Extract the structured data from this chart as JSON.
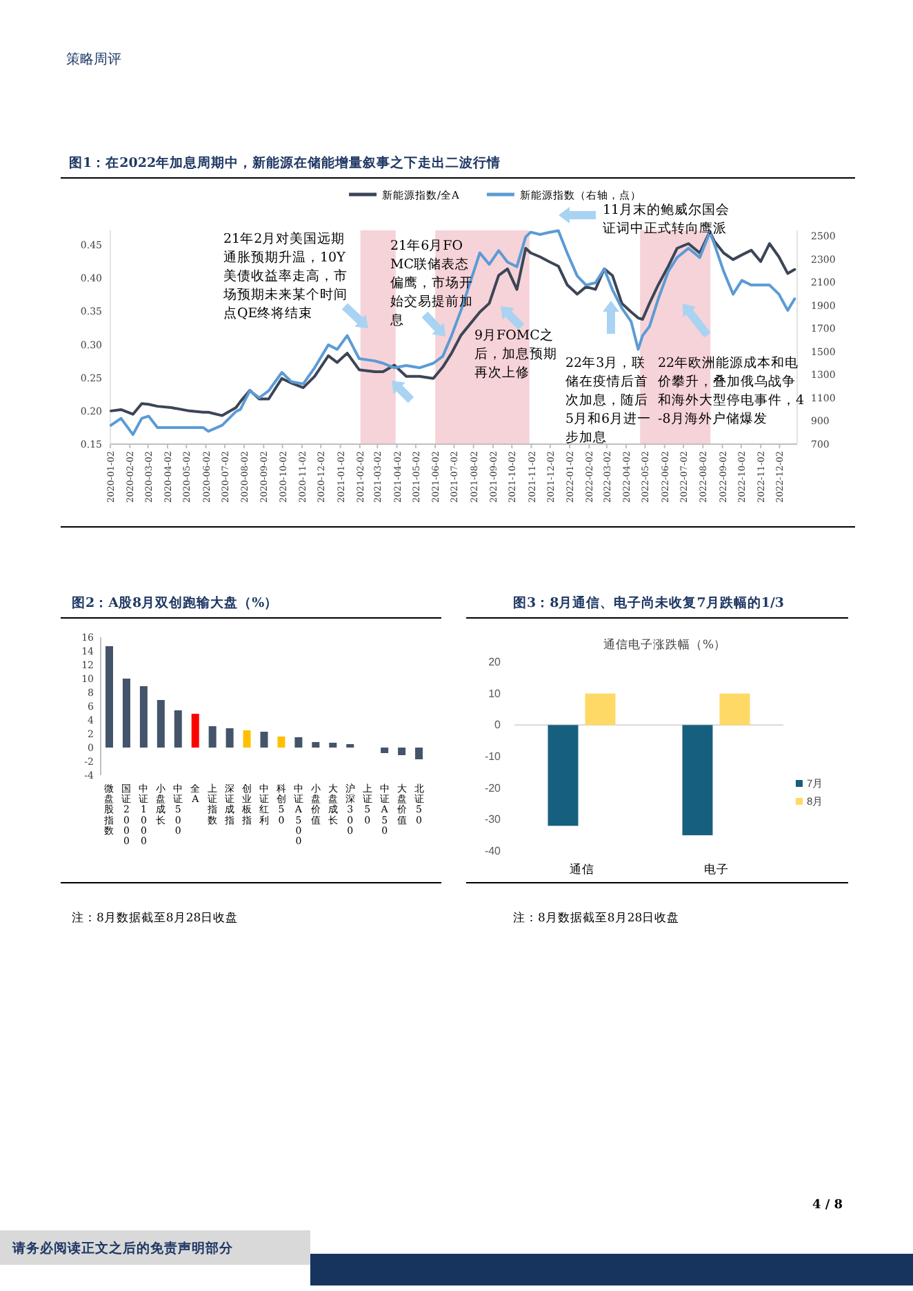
{
  "chart_data": [
    {
      "type": "line",
      "title": "图1：在2022年加息周期中，新能源在储能增量叙事之下走出二波行情",
      "x": [
        "2020-01-03",
        "2020-01-19",
        "2020-02-07",
        "2020-02-21",
        "2020-03-03",
        "2020-03-17",
        "2020-04-08",
        "2020-05-07",
        "2020-05-29",
        "2020-06-06",
        "2020-06-28",
        "2020-07-20",
        "2020-07-27",
        "2020-08-11",
        "2020-08-26",
        "2020-09-10",
        "2020-10-01",
        "2020-10-16",
        "2020-11-04",
        "2020-11-22",
        "2020-12-14",
        "2020-12-28",
        "2021-01-13",
        "2021-02-01",
        "2021-02-26",
        "2021-03-11",
        "2021-03-29",
        "2021-04-17",
        "2021-05-08",
        "2021-05-30",
        "2021-06-14",
        "2021-06-28",
        "2021-07-13",
        "2021-08-12",
        "2021-08-27",
        "2021-09-11",
        "2021-09-25",
        "2021-10-10",
        "2021-10-24",
        "2021-11-01",
        "2021-11-16",
        "2021-11-30",
        "2021-12-15",
        "2021-12-29",
        "2022-01-14",
        "2022-01-28",
        "2022-02-12",
        "2022-02-26",
        "2022-03-11",
        "2022-03-26",
        "2022-04-10",
        "2022-04-21",
        "2022-04-28",
        "2022-05-09",
        "2022-05-23",
        "2022-06-08",
        "2022-06-22",
        "2022-07-10",
        "2022-07-28",
        "2022-08-13",
        "2022-08-20",
        "2022-09-04",
        "2022-09-19",
        "2022-10-03",
        "2022-10-18",
        "2022-11-02",
        "2022-11-16",
        "2022-12-01",
        "2022-12-15",
        "2022-12-26"
      ],
      "series": [
        {
          "name": "新能源指数/全A",
          "color": "#3c4556",
          "values": [
            0.2,
            0.202,
            0.195,
            0.211,
            0.21,
            0.207,
            0.205,
            0.2,
            0.198,
            0.198,
            0.193,
            0.205,
            0.214,
            0.231,
            0.218,
            0.218,
            0.249,
            0.242,
            0.235,
            0.252,
            0.283,
            0.273,
            0.287,
            0.262,
            0.259,
            0.259,
            0.269,
            0.252,
            0.252,
            0.249,
            0.266,
            0.287,
            0.314,
            0.349,
            0.362,
            0.404,
            0.414,
            0.383,
            0.445,
            0.438,
            0.432,
            0.425,
            0.418,
            0.39,
            0.376,
            0.387,
            0.383,
            0.414,
            0.404,
            0.362,
            0.349,
            0.34,
            0.338,
            0.362,
            0.39,
            0.418,
            0.445,
            0.452,
            0.438,
            0.47,
            0.456,
            0.438,
            0.428,
            0.435,
            0.442,
            0.425,
            0.452,
            0.432,
            0.407,
            0.413
          ]
        },
        {
          "name": "新能源指数（右轴，点）",
          "color": "#5b9bd5",
          "axis": "y2",
          "values": [
            863,
            923,
            783,
            923,
            942,
            843,
            843,
            843,
            843,
            811,
            863,
            982,
            1000,
            1161,
            1101,
            1161,
            1320,
            1240,
            1221,
            1360,
            1558,
            1519,
            1638,
            1439,
            1419,
            1399,
            1360,
            1380,
            1360,
            1399,
            1459,
            1638,
            1856,
            2353,
            2254,
            2373,
            2274,
            2234,
            2492,
            2532,
            2512,
            2530,
            2545,
            2353,
            2154,
            2075,
            2095,
            2214,
            2035,
            1876,
            1757,
            1519,
            1638,
            1717,
            1956,
            2194,
            2313,
            2393,
            2313,
            2532,
            2433,
            2194,
            1996,
            2115,
            2075,
            2075,
            2075,
            1996,
            1856,
            1956
          ]
        }
      ],
      "xlim": [
        "2020-01-02",
        "2022-12-30"
      ],
      "xticks": [
        "2020-01-02",
        "2020-02-02",
        "2020-03-02",
        "2020-04-02",
        "2020-05-02",
        "2020-06-02",
        "2020-07-02",
        "2020-08-02",
        "2020-09-02",
        "2020-10-02",
        "2020-11-02",
        "2020-12-02",
        "2021-01-02",
        "2021-02-02",
        "2021-03-02",
        "2021-04-02",
        "2021-05-02",
        "2021-06-02",
        "2021-07-02",
        "2021-08-02",
        "2021-09-02",
        "2021-10-02",
        "2021-11-02",
        "2021-12-02",
        "2022-01-02",
        "2022-02-02",
        "2022-03-02",
        "2022-04-02",
        "2022-05-02",
        "2022-06-02",
        "2022-07-02",
        "2022-08-02",
        "2022-09-02",
        "2022-10-02",
        "2022-11-02",
        "2022-12-02"
      ],
      "ylim": [
        0.15,
        0.472
      ],
      "yticks": [
        {
          "value": 0.15,
          "label": "0.15"
        },
        {
          "value": 0.2,
          "label": "0.20"
        },
        {
          "value": 0.25,
          "label": "0.25"
        },
        {
          "value": 0.3,
          "label": "0.30"
        },
        {
          "value": 0.35,
          "label": "0.35"
        },
        {
          "value": 0.4,
          "label": "0.40"
        },
        {
          "value": 0.45,
          "label": "0.45"
        }
      ],
      "y2lim": [
        700,
        2548
      ],
      "y2ticks": [
        700,
        900,
        1100,
        1300,
        1500,
        1700,
        1900,
        2100,
        2300,
        2500
      ],
      "bands": [
        {
          "axis": "x",
          "from": "2021-02-03",
          "to": "2021-03-31",
          "color": "#f6d3d8"
        },
        {
          "axis": "x",
          "from": "2021-06-02",
          "to": "2021-10-30",
          "color": "#f6d3d8"
        },
        {
          "axis": "x",
          "from": "2022-04-24",
          "to": "2022-08-14",
          "color": "#f6d3d8"
        }
      ],
      "legend": "top",
      "annotations": [
        "21年2月对美国远期通胀预期升温，10Y美债收益率走高，市场预期未来某个时间点QE终将结束",
        "21年6月FOMC联储表态偏鹰，市场开始交易提前加息",
        "9月FOMC之后，加息预期再次上修",
        "11月末的鲍威尔国会证词中正式转向鹰派",
        "22年3月，联储在疫情后首次加息，随后5月和6月进一步加息",
        "22年欧洲能源成本和电价攀升，叠加俄乌战争和海外大型停电事件，4-8月海外户储爆发",
        "策略周评",
        "请务必阅读正文之后的免责声明部分",
        "4 / 8"
      ]
    },
    {
      "type": "bar",
      "title": "图2：A股8月双创跑输大盘（%）",
      "categories": [
        "微盘股指数",
        "国证2000",
        "中证1000",
        "小盘成长",
        "中证500",
        "全A",
        "上证指数",
        "深证成指",
        "创业板指",
        "中证红利",
        "科创50",
        "中证A500",
        "小盘价值",
        "大盘成长",
        "沪深300",
        "上证50",
        "中证A50",
        "大盘价值",
        "北证50"
      ],
      "values": [
        14.7,
        10.0,
        8.9,
        6.9,
        5.4,
        4.9,
        3.1,
        2.8,
        2.5,
        2.3,
        1.6,
        1.5,
        0.8,
        0.7,
        0.5,
        0,
        -0.8,
        -1.1,
        -1.7
      ],
      "colors": [
        "#44546a",
        "#44546a",
        "#44546a",
        "#44546a",
        "#44546a",
        "#ff0000",
        "#44546a",
        "#44546a",
        "#ffc000",
        "#44546a",
        "#ffc000",
        "#44546a",
        "#44546a",
        "#44546a",
        "#44546a",
        "#44546a",
        "#44546a",
        "#44546a",
        "#44546a"
      ],
      "ylim": [
        -4,
        16
      ],
      "yticks": [
        -4,
        -2,
        0,
        2,
        4,
        6,
        8,
        10,
        12,
        14,
        16
      ],
      "annotations": [
        "注：8月数据截至8月28日收盘"
      ]
    },
    {
      "type": "bar",
      "title": "图3：8月通信、电子尚未收复7月跌幅的1/3",
      "subtitle": "通信电子涨跌幅（%）",
      "categories": [
        "通信",
        "电子"
      ],
      "series": [
        {
          "name": "7月",
          "color": "#175f7e",
          "values": [
            -32,
            -35
          ]
        },
        {
          "name": "8月",
          "color": "#ffd966",
          "values": [
            10,
            10
          ]
        }
      ],
      "ylim": [
        -40,
        20
      ],
      "yticks": [
        -40,
        -30,
        -20,
        -10,
        0,
        10,
        20
      ],
      "legend": "right",
      "annotations": [
        "注：8月数据截至8月28日收盘"
      ]
    }
  ]
}
